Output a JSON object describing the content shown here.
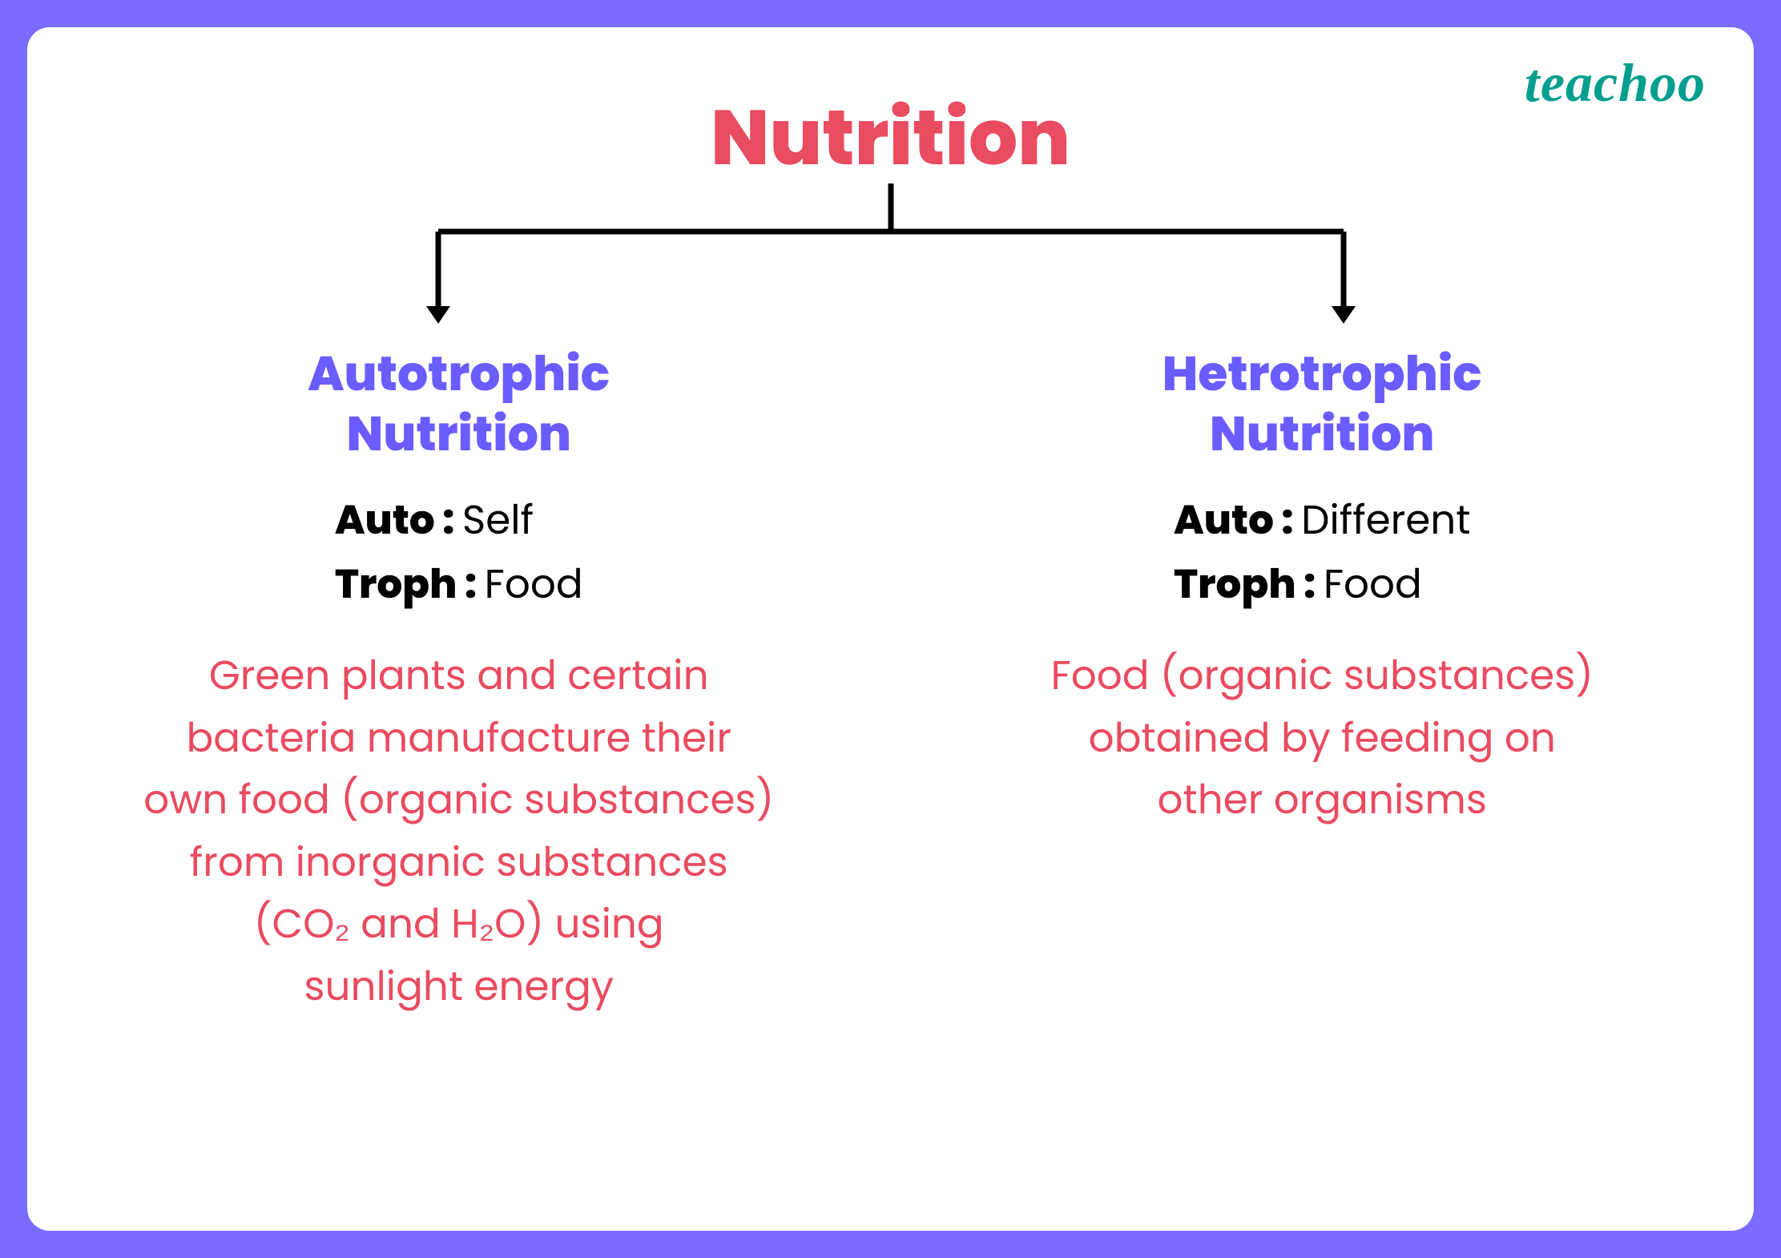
{
  "colors": {
    "border": "#7a6cff",
    "title": "#e94b60",
    "subtitle": "#6b5cff",
    "etym_label": "#000000",
    "etym_value": "#000000",
    "description": "#e94b60",
    "logo": "#009e8e",
    "connector": "#000000",
    "background": "#ffffff"
  },
  "typography": {
    "title_size": 96,
    "subtitle_size": 60,
    "etym_size": 50,
    "desc_size": 50,
    "logo_size": 68
  },
  "layout": {
    "border_width": 34,
    "border_radius": 28,
    "connector_width": 1130,
    "connector_stem_height": 60,
    "connector_drop_height": 115,
    "connector_stroke": 7
  },
  "logo": "teachoo",
  "title": "Nutrition",
  "branches": [
    {
      "title_line1": "Autotrophic",
      "title_line2": "Nutrition",
      "etym1_label": "Auto : ",
      "etym1_value": "Self",
      "etym2_label": "Troph : ",
      "etym2_value": "Food",
      "desc_lines": [
        "Green plants and certain",
        "bacteria manufacture their",
        "own food (organic substances)",
        "from inorganic substances",
        "(CO₂ and H₂O) using",
        "sunlight energy"
      ]
    },
    {
      "title_line1": "Hetrotrophic",
      "title_line2": "Nutrition",
      "etym1_label": "Auto : ",
      "etym1_value": "Different",
      "etym2_label": "Troph : ",
      "etym2_value": "Food",
      "desc_lines": [
        "Food (organic substances)",
        "obtained by feeding on",
        "other organisms"
      ]
    }
  ]
}
